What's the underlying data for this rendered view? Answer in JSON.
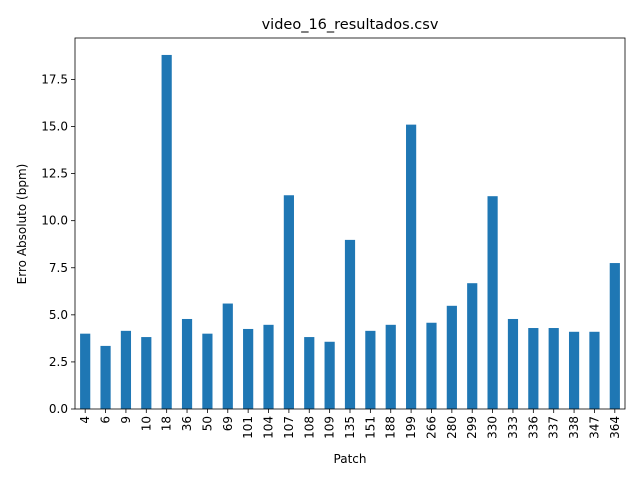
{
  "chart_data": {
    "type": "bar",
    "title": "video_16_resultados.csv",
    "xlabel": "Patch",
    "ylabel": "Erro Absoluto (bpm)",
    "categories": [
      "4",
      "6",
      "9",
      "10",
      "18",
      "36",
      "50",
      "69",
      "101",
      "104",
      "107",
      "108",
      "109",
      "135",
      "151",
      "188",
      "199",
      "266",
      "280",
      "299",
      "330",
      "333",
      "336",
      "337",
      "338",
      "347",
      "364"
    ],
    "values": [
      4.0,
      3.35,
      4.15,
      3.82,
      18.8,
      4.78,
      4.0,
      5.6,
      4.25,
      4.47,
      11.35,
      3.82,
      3.57,
      8.98,
      4.15,
      4.47,
      15.1,
      4.58,
      5.48,
      6.68,
      11.3,
      4.78,
      4.3,
      4.3,
      4.1,
      4.1,
      7.75
    ],
    "yticks": [
      "0.0",
      "2.5",
      "5.0",
      "7.5",
      "10.0",
      "12.5",
      "15.0",
      "17.5"
    ],
    "ylim": [
      0,
      19.7
    ],
    "grid": false,
    "legend": "none",
    "bar_color": "#1f77b4"
  }
}
